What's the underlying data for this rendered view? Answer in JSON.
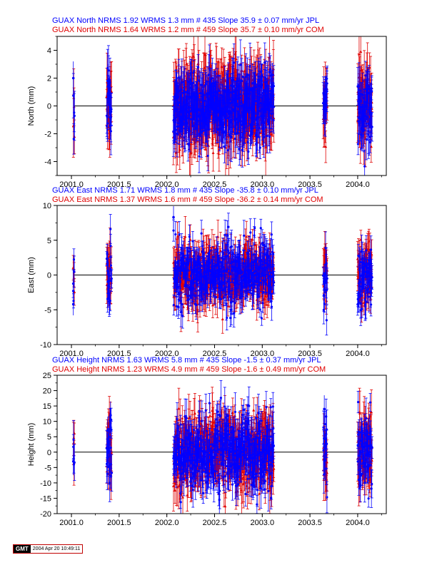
{
  "colors": {
    "jpl": "#0000ff",
    "com": "#e00000",
    "axis": "#000000",
    "stamp_border": "#c00000"
  },
  "panels": [
    {
      "id": "north",
      "header_jpl": "GUAX North NRMS 1.92 WRMS  1.3 mm # 435 Slope  35.9 ±  0.07 mm/yr JPL",
      "header_com": "GUAX North NRMS 1.64 WRMS  1.2 mm # 459 Slope  35.7 ±  0.10 mm/yr COM",
      "ylabel": "North (mm)",
      "ylim": [
        -5,
        5
      ],
      "yticks": [
        -4,
        -2,
        0,
        2,
        4
      ],
      "xticks": [
        "2001.0",
        "2001.5",
        "2002.0",
        "2002.5",
        "2003.0",
        "2003.5",
        "2004.0"
      ]
    },
    {
      "id": "east",
      "header_jpl": "GUAX East NRMS 1.71 WRMS  1.8 mm # 435 Slope  -35.8 ±  0.10 mm/yr JPL",
      "header_com": "GUAX East NRMS 1.37 WRMS  1.6 mm # 459 Slope  -36.2 ±  0.14 mm/yr COM",
      "ylabel": "East (mm)",
      "ylim": [
        -10,
        10
      ],
      "yticks": [
        -10,
        -5,
        0,
        5,
        10
      ],
      "xticks": [
        "2001.0",
        "2001.5",
        "2002.0",
        "2002.5",
        "2003.0",
        "2003.5",
        "2004.0"
      ]
    },
    {
      "id": "height",
      "header_jpl": "GUAX Height NRMS 1.63 WRMS  5.8 mm # 435 Slope   -1.5 ±  0.37 mm/yr JPL",
      "header_com": "GUAX Height NRMS 1.23 WRMS  4.9 mm # 459 Slope   -1.6 ±  0.49 mm/yr COM",
      "ylabel": "Height (mm)",
      "ylim": [
        -20,
        25
      ],
      "yticks": [
        -20,
        -15,
        -10,
        -5,
        0,
        5,
        10,
        15,
        20,
        25
      ],
      "xticks": [
        "2001.0",
        "2001.5",
        "2002.0",
        "2002.5",
        "2003.0",
        "2003.5",
        "2004.0"
      ]
    }
  ],
  "chart_data": [
    {
      "type": "scatter",
      "title": "GUAX North",
      "xlabel": "",
      "ylabel": "North (mm)",
      "xlim": [
        2000.85,
        2004.3
      ],
      "ylim": [
        -5,
        5
      ],
      "series": [
        {
          "name": "JPL",
          "color": "#0000ff",
          "segments": [
            [
              2001.02,
              2001.03
            ],
            [
              2001.37,
              2001.42
            ],
            [
              2002.07,
              2003.12
            ],
            [
              2003.64,
              2003.68
            ],
            [
              2004.0,
              2004.15
            ]
          ],
          "y_range": [
            -4.5,
            4.2
          ],
          "typical_error": 1.2
        },
        {
          "name": "COM",
          "color": "#e00000",
          "segments": [
            [
              2001.02,
              2001.03
            ],
            [
              2001.37,
              2001.42
            ],
            [
              2002.07,
              2003.12
            ],
            [
              2003.64,
              2003.68
            ],
            [
              2004.0,
              2004.15
            ]
          ],
          "y_range": [
            -4.8,
            4.5
          ],
          "typical_error": 1.5
        }
      ],
      "points_sampled": [
        {
          "x": 2001.02,
          "y": 2.0
        },
        {
          "x": 2001.38,
          "y": 1.8
        },
        {
          "x": 2001.41,
          "y": 0.7
        },
        {
          "x": 2003.65,
          "y": 0.5
        },
        {
          "x": 2004.05,
          "y": -1.2
        }
      ]
    },
    {
      "type": "scatter",
      "title": "GUAX East",
      "xlabel": "",
      "ylabel": "East (mm)",
      "xlim": [
        2000.85,
        2004.3
      ],
      "ylim": [
        -10,
        10
      ],
      "series": [
        {
          "name": "JPL",
          "color": "#0000ff",
          "segments": [
            [
              2001.02,
              2001.03
            ],
            [
              2001.37,
              2001.42
            ],
            [
              2002.07,
              2003.12
            ],
            [
              2003.64,
              2003.68
            ],
            [
              2004.0,
              2004.15
            ]
          ],
          "y_range": [
            -6.5,
            9.0
          ],
          "typical_error": 1.6
        },
        {
          "name": "COM",
          "color": "#e00000",
          "segments": [
            [
              2001.02,
              2001.03
            ],
            [
              2001.37,
              2001.42
            ],
            [
              2002.07,
              2003.12
            ],
            [
              2003.64,
              2003.68
            ],
            [
              2004.0,
              2004.15
            ]
          ],
          "y_range": [
            -8.0,
            5.5
          ],
          "typical_error": 2.0
        }
      ],
      "points_sampled": [
        {
          "x": 2001.02,
          "y": -4.2
        },
        {
          "x": 2001.02,
          "y": -2.3
        },
        {
          "x": 2002.07,
          "y": 8.3
        },
        {
          "x": 2003.65,
          "y": 0.0
        },
        {
          "x": 2004.05,
          "y": -2.0
        }
      ]
    },
    {
      "type": "scatter",
      "title": "GUAX Height",
      "xlabel": "",
      "ylabel": "Height (mm)",
      "xlim": [
        2000.85,
        2004.3
      ],
      "ylim": [
        -20,
        25
      ],
      "series": [
        {
          "name": "JPL",
          "color": "#0000ff",
          "segments": [
            [
              2001.02,
              2001.03
            ],
            [
              2001.37,
              2001.42
            ],
            [
              2002.07,
              2003.12
            ],
            [
              2003.64,
              2003.68
            ],
            [
              2004.0,
              2004.15
            ]
          ],
          "y_range": [
            -17,
            22
          ],
          "typical_error": 4.5
        },
        {
          "name": "COM",
          "color": "#e00000",
          "segments": [
            [
              2001.02,
              2001.03
            ],
            [
              2001.37,
              2001.42
            ],
            [
              2002.07,
              2003.12
            ],
            [
              2003.64,
              2003.68
            ],
            [
              2004.0,
              2004.15
            ]
          ],
          "y_range": [
            -18,
            20
          ],
          "typical_error": 5.5
        }
      ],
      "points_sampled": [
        {
          "x": 2001.02,
          "y": -3.0
        },
        {
          "x": 2001.38,
          "y": 7.0
        },
        {
          "x": 2001.41,
          "y": 12.0
        },
        {
          "x": 2003.65,
          "y": 14.0
        },
        {
          "x": 2004.05,
          "y": 2.0
        }
      ]
    }
  ],
  "footer": {
    "logo": "GMT",
    "timestamp": "2004 Apr 20 10:49:11"
  }
}
